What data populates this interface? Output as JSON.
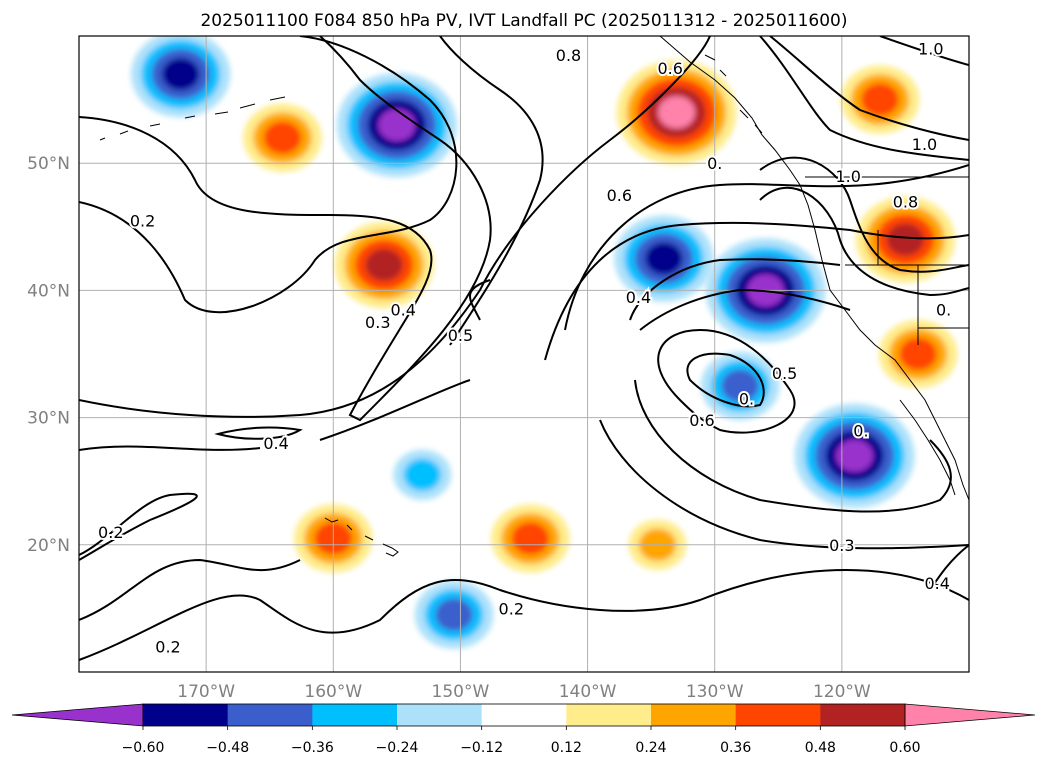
{
  "chart_data": {
    "type": "heatmap",
    "title": "2025011100 F084 850 hPa PV, IVT Landfall PC (2025011312 - 2025011600)",
    "map": {
      "lon_range": [
        -180,
        -110
      ],
      "lat_range": [
        10,
        60
      ],
      "lon_ticks": [
        -170,
        -160,
        -150,
        -140,
        -130,
        -120
      ],
      "lat_ticks": [
        20,
        30,
        40,
        50
      ],
      "lon_tick_labels": [
        "170°W",
        "160°W",
        "150°W",
        "140°W",
        "130°W",
        "120°W"
      ],
      "lat_tick_labels": [
        "20°N",
        "30°N",
        "40°N",
        "50°N"
      ],
      "grid": true
    },
    "colorbar": {
      "orientation": "horizontal",
      "extend": "both",
      "boundaries": [
        -0.6,
        -0.48,
        -0.36,
        -0.24,
        -0.12,
        0.12,
        0.24,
        0.36,
        0.48,
        0.6
      ],
      "tick_labels": [
        "−0.60",
        "−0.48",
        "−0.36",
        "−0.24",
        "−0.12",
        "0.12",
        "0.24",
        "0.36",
        "0.48",
        "0.60"
      ],
      "colors": [
        "#9932CC",
        "#00008B",
        "#3A5FCD",
        "#00BFFF",
        "#ADE1FA",
        "#FFFFFF",
        "#FFEC8B",
        "#FFA500",
        "#FF4500",
        "#B22222",
        "#FF82AB"
      ]
    },
    "shaded_features": [
      {
        "lon": -155,
        "lat": 53,
        "value": -0.65
      },
      {
        "lon": -172,
        "lat": 57,
        "value": -0.5
      },
      {
        "lon": -126,
        "lat": 40,
        "value": -0.66
      },
      {
        "lon": -134,
        "lat": 42.5,
        "value": -0.5
      },
      {
        "lon": -119,
        "lat": 27,
        "value": -0.65
      },
      {
        "lon": -128,
        "lat": 32.5,
        "value": -0.4
      },
      {
        "lon": -150.5,
        "lat": 14.5,
        "value": -0.4
      },
      {
        "lon": -153,
        "lat": 25.5,
        "value": -0.3
      },
      {
        "lon": -133,
        "lat": 54,
        "value": 0.66
      },
      {
        "lon": -115,
        "lat": 44,
        "value": 0.5
      },
      {
        "lon": -117,
        "lat": 55,
        "value": 0.4
      },
      {
        "lon": -114,
        "lat": 35,
        "value": 0.4
      },
      {
        "lon": -156,
        "lat": 42,
        "value": 0.5
      },
      {
        "lon": -164,
        "lat": 52,
        "value": 0.36
      },
      {
        "lon": -160,
        "lat": 20.5,
        "value": 0.36
      },
      {
        "lon": -144.5,
        "lat": 20.5,
        "value": 0.36
      },
      {
        "lon": -134.5,
        "lat": 20,
        "value": 0.3
      }
    ],
    "contour_labels": [
      {
        "text": "0.2",
        "lon": -175,
        "lat": 45.5
      },
      {
        "text": "0.3",
        "lon": -156.5,
        "lat": 37.5
      },
      {
        "text": "0.4",
        "lon": -154.5,
        "lat": 38.5
      },
      {
        "text": "0.5",
        "lon": -150,
        "lat": 36.5
      },
      {
        "text": "0.4",
        "lon": -164.5,
        "lat": 28
      },
      {
        "text": "0.2",
        "lon": -177.5,
        "lat": 21
      },
      {
        "text": "0.2",
        "lon": -146,
        "lat": 15
      },
      {
        "text": "0.2",
        "lon": -173,
        "lat": 12
      },
      {
        "text": "0.8",
        "lon": -141.5,
        "lat": 58.5
      },
      {
        "text": "0.6",
        "lon": -137.5,
        "lat": 47.5
      },
      {
        "text": "0.4",
        "lon": -136,
        "lat": 39.5
      },
      {
        "text": "0.5",
        "lon": -124.5,
        "lat": 33.5
      },
      {
        "text": "0.6",
        "lon": -131,
        "lat": 29.8
      },
      {
        "text": "0.3",
        "lon": -120,
        "lat": 20
      },
      {
        "text": "0.4",
        "lon": -112.5,
        "lat": 17
      },
      {
        "text": "1.0",
        "lon": -113,
        "lat": 59
      },
      {
        "text": "1.0",
        "lon": -113.5,
        "lat": 51.5
      },
      {
        "text": "0.8",
        "lon": -115,
        "lat": 47
      },
      {
        "text": "1.0",
        "lon": -119.5,
        "lat": 49
      },
      {
        "text": "0.6",
        "lon": -133.5,
        "lat": 57.5
      },
      {
        "text": "0.",
        "lon": -130,
        "lat": 50
      },
      {
        "text": "0.",
        "lon": -112,
        "lat": 38.5
      },
      {
        "text": "0.",
        "lon": -118.5,
        "lat": 29
      },
      {
        "text": "0.",
        "lon": -127.5,
        "lat": 31.5
      }
    ]
  }
}
